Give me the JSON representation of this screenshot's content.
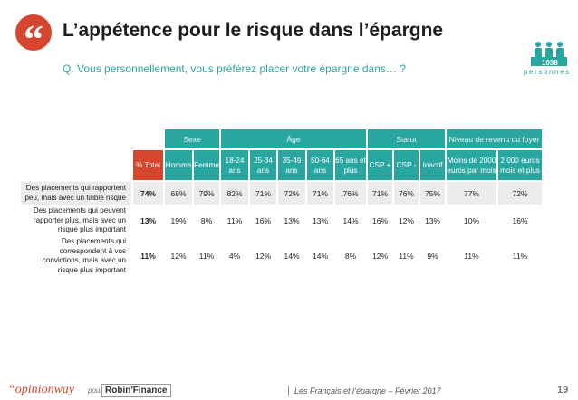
{
  "header": {
    "quote_mark": "“",
    "title": "L’appétence pour le risque dans l’épargne",
    "question": "Q. Vous personnellement, vous préférez placer votre épargne dans… ?",
    "sample_count": "1038",
    "sample_label": "personnes"
  },
  "chart_data": {
    "type": "table",
    "groups": [
      {
        "label": "Sexe",
        "span": 2
      },
      {
        "label": "Âge",
        "span": 5
      },
      {
        "label": "Statut",
        "span": 3
      },
      {
        "label": "Niveau de revenu du foyer",
        "span": 2
      }
    ],
    "columns": [
      "% Total",
      "Homme",
      "Femme",
      "18-24 ans",
      "25-34 ans",
      "35-49 ans",
      "50-64 ans",
      "65 ans et plus",
      "CSP +",
      "CSP -",
      "Inactif",
      "Moins de 2000 euros par mois",
      "2 000 euros mois et plus"
    ],
    "rows": [
      {
        "label": "Des placements qui rapportent peu, mais avec un faible risque",
        "values": [
          "74%",
          "68%",
          "79%",
          "82%",
          "71%",
          "72%",
          "71%",
          "76%",
          "71%",
          "76%",
          "75%",
          "77%",
          "72%"
        ]
      },
      {
        "label": "Des placements qui peuvent rapporter plus, mais avec un risque plus important",
        "values": [
          "13%",
          "19%",
          "8%",
          "11%",
          "16%",
          "13%",
          "13%",
          "14%",
          "16%",
          "12%",
          "13%",
          "10%",
          "16%"
        ]
      },
      {
        "label": "Des placements qui correspondent à vos convictions, mais avec un risque plus important",
        "values": [
          "11%",
          "12%",
          "11%",
          "4%",
          "12%",
          "14%",
          "14%",
          "8%",
          "12%",
          "11%",
          "9%",
          "11%",
          "11%"
        ]
      }
    ]
  },
  "footer": {
    "brand": "“opinionway",
    "pour": "pour",
    "partner": "Robin'Finance",
    "caption": "Les Français et l’épargne – Février 2017",
    "page": "19"
  },
  "colors": {
    "accent_teal": "#2aa6a0",
    "accent_red": "#d6462f",
    "row_highlight": "#ececec"
  }
}
